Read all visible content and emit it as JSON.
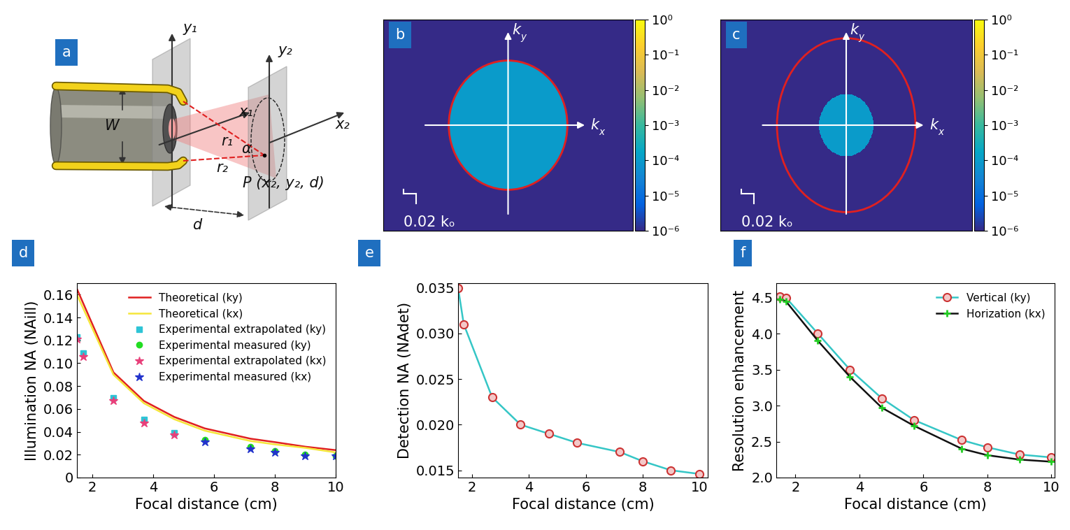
{
  "diagram": {
    "panel": "a",
    "labels": {
      "y1": "y₁",
      "x1": "x₁",
      "y2": "y₂",
      "x2": "x₂",
      "W": "W",
      "r1": "r₁",
      "r2": "r₂",
      "alpha": "α",
      "P": "P (x₂, y₂, d)",
      "d": "d"
    }
  },
  "chart_data": [
    {
      "type": "heatmap",
      "panel": "b",
      "xlim": [
        -0.2,
        0.2
      ],
      "ylim": [
        -0.17,
        0.17
      ],
      "tick_labels": false,
      "region": {
        "rx": 0.095,
        "ry": 0.104,
        "value": 0.0001
      },
      "circle": {
        "rx": 0.095,
        "ry": 0.104,
        "color": "#e02020"
      },
      "x_label": "kx",
      "y_label": "ky",
      "scale_bar": {
        "length": 0.02,
        "label": "0.02 kₒ"
      },
      "colorbar": {
        "range": [
          1e-06,
          1
        ],
        "ticks": [
          {
            "value": 1,
            "label": "10⁰"
          },
          {
            "value": 0.1,
            "label": "10⁻¹"
          },
          {
            "value": 0.01,
            "label": "10⁻²"
          },
          {
            "value": 0.001,
            "label": "10⁻³"
          },
          {
            "value": 0.0001,
            "label": "10⁻⁴"
          },
          {
            "value": 1e-05,
            "label": "10⁻⁵"
          },
          {
            "value": 1e-06,
            "label": "10⁻⁶"
          }
        ]
      }
    },
    {
      "type": "heatmap",
      "panel": "c",
      "xlim": [
        -0.2,
        0.2
      ],
      "ylim": [
        -0.17,
        0.17
      ],
      "tick_labels": false,
      "region": {
        "rx": 0.043,
        "ry": 0.05,
        "value": 0.0001
      },
      "circle": {
        "rx": 0.11,
        "ry": 0.14,
        "color": "#e02020"
      },
      "x_label": "kx",
      "y_label": "ky",
      "scale_bar": {
        "length": 0.02,
        "label": "0.02 kₒ"
      },
      "colorbar": {
        "range": [
          1e-06,
          1
        ],
        "ticks": [
          {
            "value": 1,
            "label": "10⁰"
          },
          {
            "value": 0.1,
            "label": "10⁻¹"
          },
          {
            "value": 0.01,
            "label": "10⁻²"
          },
          {
            "value": 0.001,
            "label": "10⁻³"
          },
          {
            "value": 0.0001,
            "label": "10⁻⁴"
          },
          {
            "value": 1e-05,
            "label": "10⁻⁵"
          },
          {
            "value": 1e-06,
            "label": "10⁻⁶"
          }
        ]
      }
    },
    {
      "type": "line",
      "panel": "d",
      "x_label": "Focal distance (cm)",
      "y_label": "Illumination NA (NAill)",
      "xlim": [
        1.5,
        10
      ],
      "xticks": [
        2,
        4,
        6,
        8,
        10
      ],
      "ylim": [
        0,
        0.17
      ],
      "yticks": [
        0,
        0.02,
        0.04,
        0.06,
        0.08,
        {
          "value": 0.1,
          "label": "0.10"
        },
        0.12,
        0.14,
        0.16
      ],
      "legend": "upper right",
      "series": [
        {
          "name": "Theoretical (ky)",
          "color": "#e02020",
          "line_style": "solid",
          "marker": "none",
          "x": [
            1.5,
            2.7,
            3.7,
            4.7,
            5.7,
            7.2,
            8,
            9,
            10
          ],
          "values": [
            0.165,
            0.092,
            0.067,
            0.053,
            0.043,
            0.034,
            0.031,
            0.027,
            0.024
          ]
        },
        {
          "name": "Theoretical (kx)",
          "color": "#f5e63a",
          "line_style": "solid",
          "marker": "none",
          "x": [
            1.5,
            2.7,
            3.7,
            4.7,
            5.7,
            7.2,
            8,
            9,
            10
          ],
          "values": [
            0.16,
            0.09,
            0.065,
            0.051,
            0.041,
            0.032,
            0.029,
            0.026,
            0.022
          ]
        },
        {
          "name": "Experimental extrapolated (ky)",
          "color": "#2ec4d6",
          "line_style": "none",
          "marker": "square",
          "x": [
            1.5,
            1.7,
            2.7,
            3.7,
            4.7
          ],
          "values": [
            0.123,
            0.109,
            0.07,
            0.051,
            0.039
          ]
        },
        {
          "name": "Experimental measured (ky)",
          "color": "#22dd22",
          "line_style": "none",
          "marker": "circle",
          "x": [
            5.7,
            7.2,
            8,
            9,
            10
          ],
          "values": [
            0.033,
            0.027,
            0.023,
            0.02,
            0.019
          ]
        },
        {
          "name": "Experimental extrapolated (kx)",
          "color": "#e8407a",
          "line_style": "none",
          "marker": "star",
          "x": [
            1.5,
            1.7,
            2.7,
            3.7,
            4.7
          ],
          "values": [
            0.121,
            0.106,
            0.067,
            0.048,
            0.037
          ]
        },
        {
          "name": "Experimental measured (kx)",
          "color": "#2233cc",
          "line_style": "none",
          "marker": "star",
          "x": [
            5.7,
            7.2,
            8,
            9,
            10
          ],
          "values": [
            0.031,
            0.025,
            0.022,
            0.019,
            0.019
          ]
        }
      ]
    },
    {
      "type": "line",
      "panel": "e",
      "x_label": "Focal distance (cm)",
      "y_label": "Detection NA (NAdet)",
      "xlim": [
        1.5,
        10.3
      ],
      "xticks": [
        2,
        4,
        6,
        8,
        10
      ],
      "ylim": [
        0.0142,
        0.0355
      ],
      "yticks": [
        0.015,
        {
          "value": 0.02,
          "label": "0.020"
        },
        0.025,
        {
          "value": 0.03,
          "label": "0.030"
        },
        0.035
      ],
      "series": [
        {
          "color": "#35c6c6",
          "line_style": "solid",
          "marker": "circle",
          "x": [
            1.5,
            1.7,
            2.7,
            3.7,
            4.7,
            5.7,
            7.2,
            8,
            9,
            10
          ],
          "values": [
            0.035,
            0.031,
            0.023,
            0.02,
            0.019,
            0.018,
            0.017,
            0.016,
            0.015,
            0.0146
          ]
        }
      ]
    },
    {
      "type": "line",
      "panel": "f",
      "x_label": "Focal distance (cm)",
      "y_label": "Resolution enhancement",
      "xlim": [
        1.4,
        10.1
      ],
      "xticks": [
        2,
        4,
        6,
        8,
        10
      ],
      "ylim": [
        2.0,
        4.7
      ],
      "yticks": [
        2.0,
        2.5,
        3.0,
        3.5,
        4.0,
        4.5
      ],
      "legend": "upper right",
      "series": [
        {
          "name": "Vertical (ky)",
          "color": "#35c6c6",
          "line_style": "solid",
          "marker": "circle",
          "x": [
            1.5,
            1.7,
            2.7,
            3.7,
            4.7,
            5.7,
            7.2,
            8,
            9,
            10
          ],
          "values": [
            4.52,
            4.5,
            4.0,
            3.5,
            3.1,
            2.8,
            2.52,
            2.42,
            2.32,
            2.28
          ]
        },
        {
          "name": "Horization (kx)",
          "color": "#111111",
          "line_style": "solid",
          "marker": "plus",
          "x": [
            1.5,
            1.7,
            2.7,
            3.7,
            4.7,
            5.7,
            7.2,
            8,
            9,
            10
          ],
          "values": [
            4.48,
            4.45,
            3.9,
            3.4,
            2.97,
            2.72,
            2.4,
            2.31,
            2.25,
            2.22
          ]
        }
      ]
    }
  ]
}
